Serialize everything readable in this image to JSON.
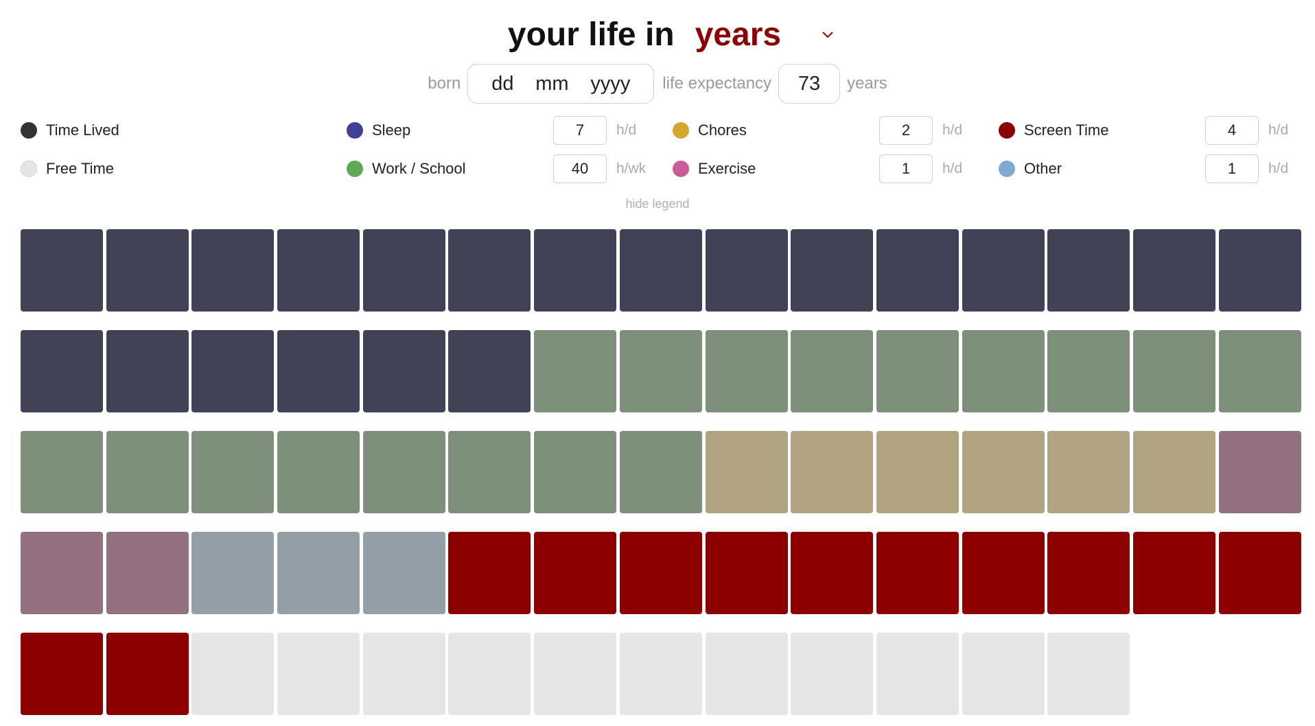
{
  "title": {
    "prefix": "your life in",
    "unit": "years"
  },
  "born": {
    "label": "born",
    "day_placeholder": "dd",
    "month_placeholder": "mm",
    "year_placeholder": "yyyy"
  },
  "life_expectancy": {
    "label": "life expectancy",
    "value": "73",
    "unit": "years"
  },
  "legend": {
    "time_lived": {
      "label": "Time Lived",
      "color": "#333333"
    },
    "free_time": {
      "label": "Free Time",
      "color": "#e6e6e6"
    },
    "sleep": {
      "label": "Sleep",
      "color": "#3f3f96",
      "value": "7",
      "unit": "h/d"
    },
    "work_school": {
      "label": "Work / School",
      "color": "#5fa85a",
      "value": "40",
      "unit": "h/wk"
    },
    "chores": {
      "label": "Chores",
      "color": "#d4a72c",
      "value": "2",
      "unit": "h/d"
    },
    "exercise": {
      "label": "Exercise",
      "color": "#cc5a96",
      "value": "1",
      "unit": "h/d"
    },
    "screen_time": {
      "label": "Screen Time",
      "color": "#8b0000",
      "value": "4",
      "unit": "h/d"
    },
    "other": {
      "label": "Other",
      "color": "#7eaad0",
      "value": "1",
      "unit": "h/d"
    },
    "hide_label": "hide legend"
  },
  "grid": {
    "total_years": 73,
    "segments": [
      {
        "category": "sleep",
        "years": 21,
        "color": "#424257"
      },
      {
        "category": "work_school",
        "years": 17,
        "color": "#7e8f7b"
      },
      {
        "category": "chores",
        "years": 6,
        "color": "#b0a482"
      },
      {
        "category": "exercise",
        "years": 3,
        "color": "#92727e"
      },
      {
        "category": "other",
        "years": 3,
        "color": "#959fa7"
      },
      {
        "category": "screen_time",
        "years": 12,
        "color": "#8b0000"
      },
      {
        "category": "free_time",
        "years": 11,
        "color": "#e6e6e6"
      }
    ]
  }
}
